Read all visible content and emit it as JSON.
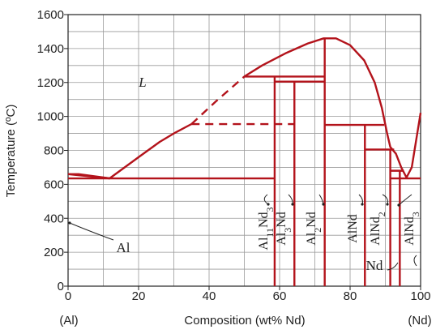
{
  "colors": {
    "curve": "#b3131b",
    "grid": "#9a9a9a",
    "axis": "#222222",
    "text": "#222222"
  },
  "axes": {
    "ylabel": "Temperature (ºC)",
    "xlabel": "Composition (wt% Nd)",
    "x_end_left": "(Al)",
    "x_end_right": "(Nd)",
    "x_ticks": [
      "0",
      "20",
      "40",
      "60",
      "80",
      "100"
    ],
    "y_ticks": [
      "0",
      "200",
      "400",
      "600",
      "800",
      "1000",
      "1200",
      "1400",
      "1600"
    ]
  },
  "labels": {
    "liquid": "L",
    "al": "Al",
    "nd": "Nd"
  },
  "compounds": [
    {
      "id": "al11nd3",
      "name": "Al11Nd3",
      "base": "Al",
      "sub1": "11",
      "mid": "Nd",
      "sub2": "3",
      "wt": 58.6
    },
    {
      "id": "al3nd",
      "name": "Al3Nd",
      "base": "Al",
      "sub1": "3",
      "mid": "Nd",
      "sub2": "",
      "wt": 64.2
    },
    {
      "id": "al2nd",
      "name": "Al2Nd",
      "base": "Al",
      "sub1": "2",
      "mid": "Nd",
      "sub2": "",
      "wt": 72.8
    },
    {
      "id": "alnd",
      "name": "AlNd",
      "base": "Al",
      "sub1": "",
      "mid": "Nd",
      "sub2": "",
      "wt": 84.2
    },
    {
      "id": "alnd2",
      "name": "AlNd2",
      "base": "AlNd",
      "sub1": "",
      "mid": "",
      "sub2": "2",
      "wt": 91.4
    },
    {
      "id": "alnd3",
      "name": "AlNd3",
      "base": "AlNd",
      "sub1": "",
      "mid": "",
      "sub2": "3",
      "wt": 94.1
    }
  ],
  "chart_data": {
    "type": "phase-diagram",
    "x_range": [
      0,
      100
    ],
    "y_range": [
      0,
      1600
    ],
    "grid": true,
    "liquidus": [
      [
        0,
        660
      ],
      [
        11.8,
        635
      ],
      [
        20,
        760
      ],
      [
        26,
        850
      ],
      [
        30,
        900
      ],
      [
        35,
        955
      ],
      [
        42,
        1090
      ],
      [
        50,
        1235
      ],
      [
        55,
        1300
      ],
      [
        62,
        1375
      ],
      [
        68,
        1430
      ],
      [
        72.5,
        1460
      ],
      [
        76,
        1460
      ],
      [
        80,
        1420
      ],
      [
        84,
        1330
      ],
      [
        87,
        1200
      ],
      [
        89,
        1050
      ],
      [
        90.5,
        900
      ],
      [
        91.4,
        820
      ],
      [
        93,
        780
      ],
      [
        94.5,
        700
      ],
      [
        96,
        640
      ],
      [
        97.5,
        700
      ],
      [
        100,
        1021
      ]
    ],
    "liquidus_dashed_range": [
      35,
      50
    ],
    "solidus_al": [
      [
        0,
        660
      ],
      [
        3,
        660
      ],
      [
        11.8,
        635
      ]
    ],
    "eutectic_lines": [
      {
        "x": [
          0,
          58.6
        ],
        "y": 635
      },
      {
        "x": [
          35,
          64.2
        ],
        "y": 955,
        "dashed": true
      },
      {
        "x": [
          50,
          72.8
        ],
        "y": 1235
      },
      {
        "x": [
          58.6,
          72.8
        ],
        "y": 1205
      },
      {
        "x": [
          72.8,
          89.7
        ],
        "y": 950
      },
      {
        "x": [
          84.2,
          92.5
        ],
        "y": 805
      },
      {
        "x": [
          91.4,
          95.2
        ],
        "y": 680
      },
      {
        "x": [
          91.4,
          100
        ],
        "y": 635
      }
    ],
    "compound_lines": [
      {
        "x": 58.6,
        "y_top": 1235
      },
      {
        "x": 64.2,
        "y_top": 1205
      },
      {
        "x": 72.8,
        "y_top": 1460
      },
      {
        "x": 84.2,
        "y_top": 950
      },
      {
        "x": 91.4,
        "y_top": 805
      },
      {
        "x": 94.1,
        "y_top": 680
      }
    ]
  }
}
